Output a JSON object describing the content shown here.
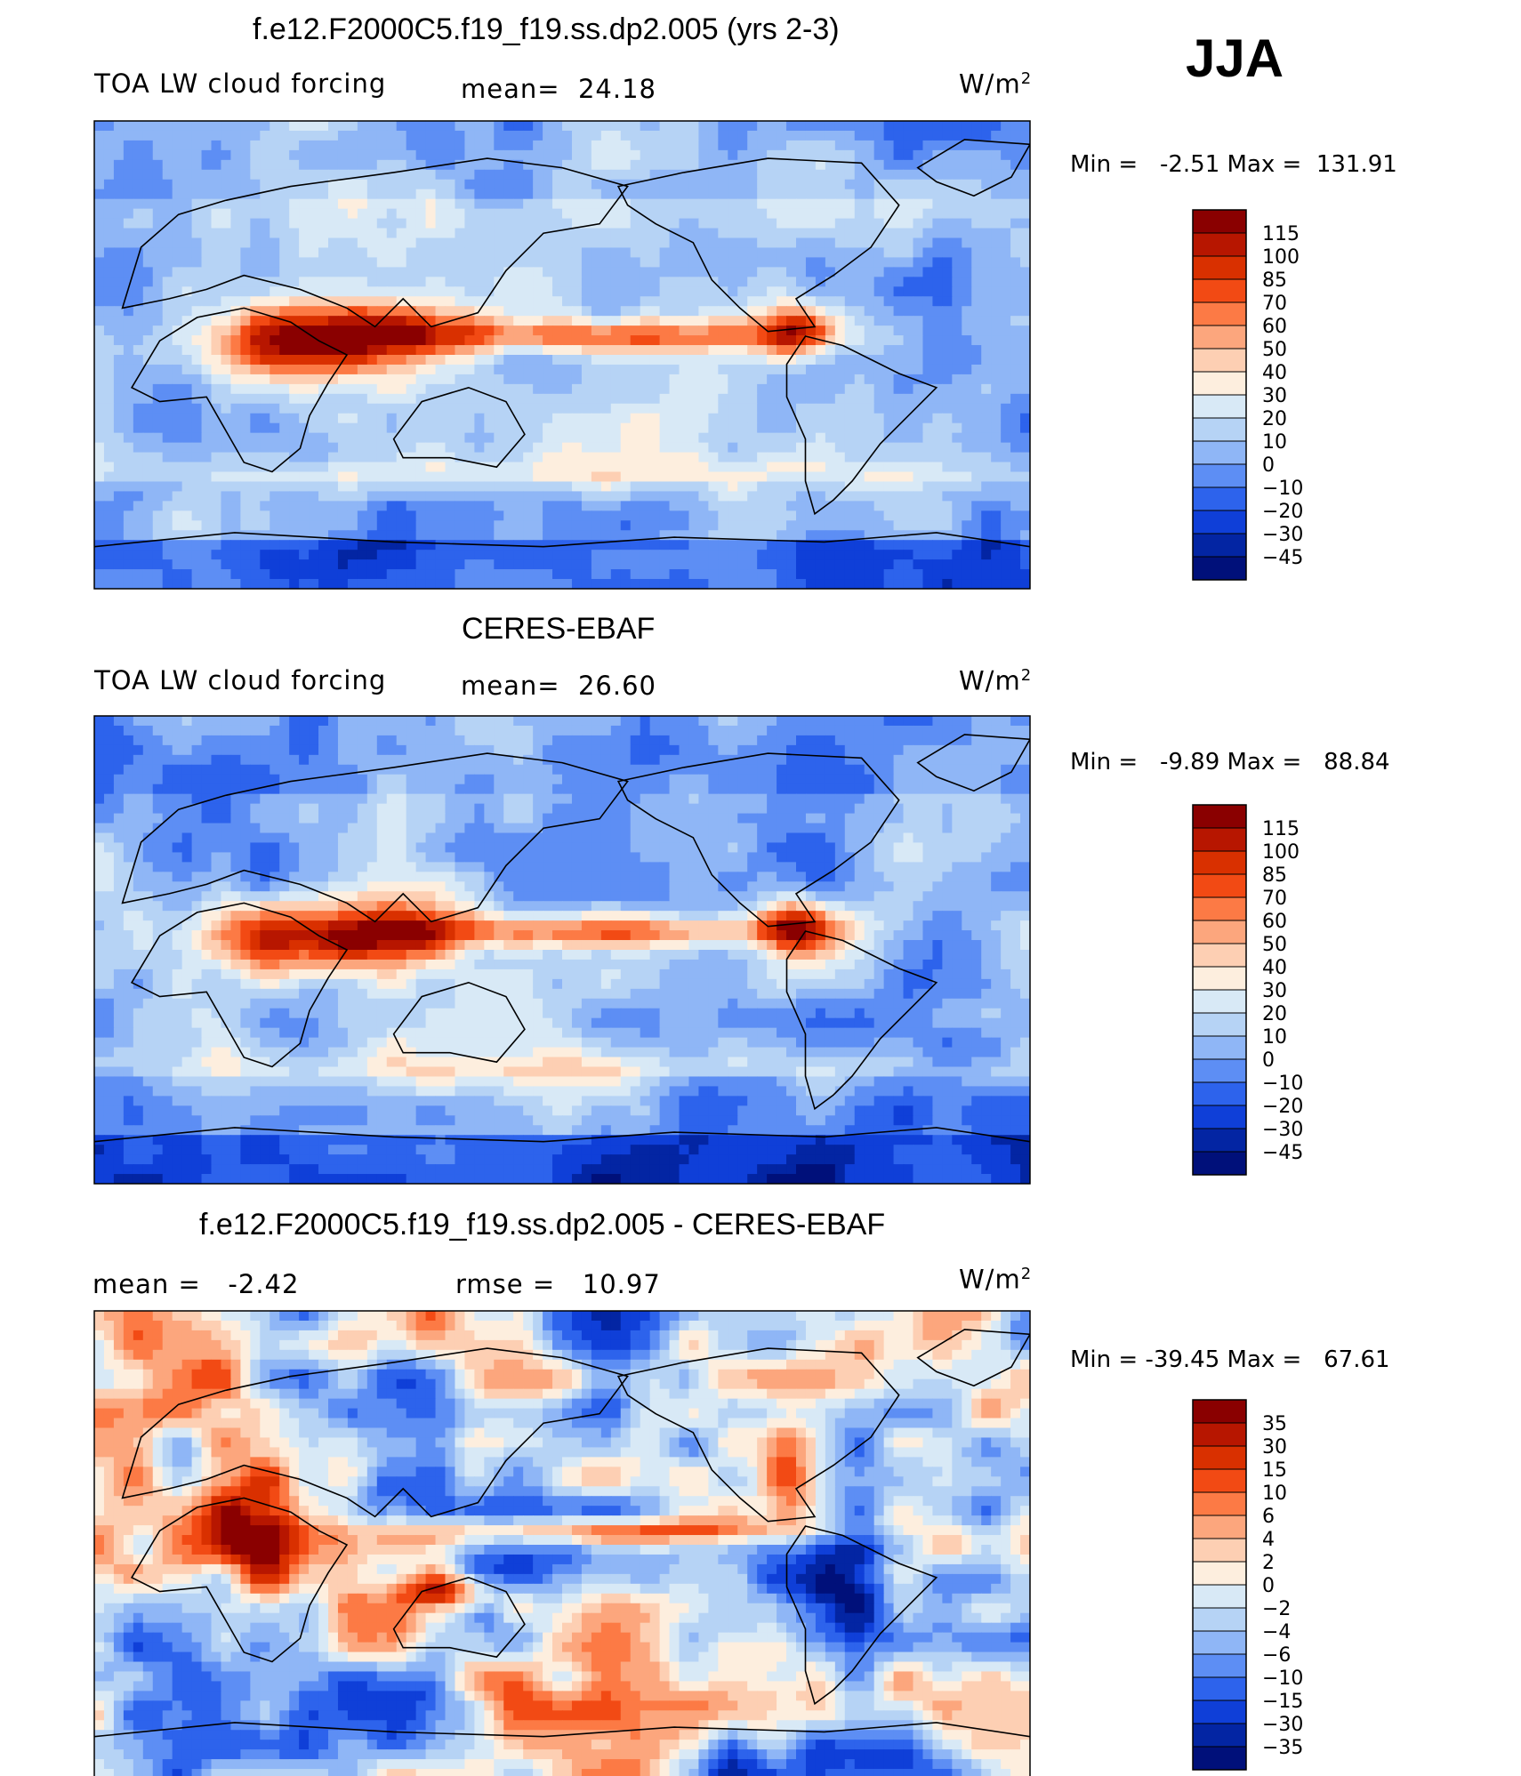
{
  "season": "JJA",
  "unit": "W/m",
  "unit_sup": "2",
  "chart_data": [
    {
      "type": "heatmap",
      "title": "f.e12.F2000C5.f19_f19.ss.dp2.005 (yrs 2-3)",
      "variable": "TOA LW cloud forcing",
      "stat1": "mean=  24.18",
      "stat2": "",
      "range_text": "Min =   -2.51 Max =  131.91",
      "min": -2.51,
      "max": 131.91,
      "mean": 24.18,
      "levels": [
        "115",
        "100",
        "85",
        "70",
        "60",
        "50",
        "40",
        "30",
        "20",
        "10",
        "0",
        "-10",
        "-20",
        "-30",
        "-45"
      ],
      "colors": [
        "#8a0000",
        "#b71600",
        "#d93000",
        "#f24a14",
        "#fc7a45",
        "#fca67d",
        "#fdcfb3",
        "#fdeede",
        "#d8e9f6",
        "#b6d3f5",
        "#8fb6f6",
        "#5d8ef4",
        "#2d63ec",
        "#0f3fd8",
        "#0325a3",
        "#00107a"
      ]
    },
    {
      "type": "heatmap",
      "title": "CERES-EBAF",
      "variable": "TOA LW cloud forcing",
      "stat1": "mean=  26.60",
      "stat2": "",
      "range_text": "Min =   -9.89 Max =   88.84",
      "min": -9.89,
      "max": 88.84,
      "mean": 26.6,
      "levels": [
        "115",
        "100",
        "85",
        "70",
        "60",
        "50",
        "40",
        "30",
        "20",
        "10",
        "0",
        "-10",
        "-20",
        "-30",
        "-45"
      ],
      "colors": [
        "#8a0000",
        "#b71600",
        "#d93000",
        "#f24a14",
        "#fc7a45",
        "#fca67d",
        "#fdcfb3",
        "#fdeede",
        "#d8e9f6",
        "#b6d3f5",
        "#8fb6f6",
        "#5d8ef4",
        "#2d63ec",
        "#0f3fd8",
        "#0325a3",
        "#00107a"
      ]
    },
    {
      "type": "heatmap",
      "title": "f.e12.F2000C5.f19_f19.ss.dp2.005 - CERES-EBAF",
      "variable": "",
      "stat1": "mean =   -2.42",
      "stat2": "rmse =   10.97",
      "range_text": "Min = -39.45 Max =   67.61",
      "min": -39.45,
      "max": 67.61,
      "mean": -2.42,
      "rmse": 10.97,
      "levels": [
        "35",
        "30",
        "15",
        "10",
        "6",
        "4",
        "2",
        "0",
        "-2",
        "-4",
        "-6",
        "-10",
        "-15",
        "-30",
        "-35"
      ],
      "colors": [
        "#8a0000",
        "#b71600",
        "#d93000",
        "#f24a14",
        "#fc7a45",
        "#fca67d",
        "#fdcfb3",
        "#fdeede",
        "#d8e9f6",
        "#b6d3f5",
        "#8fb6f6",
        "#5d8ef4",
        "#2d63ec",
        "#0f3fd8",
        "#0325a3",
        "#00107a"
      ]
    }
  ]
}
